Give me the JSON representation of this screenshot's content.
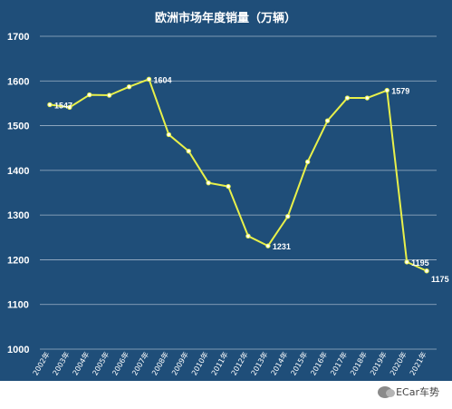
{
  "chart_data": {
    "type": "line",
    "title": "欧洲市场年度销量（万辆）",
    "xlabel": "",
    "ylabel": "",
    "categories": [
      "2002年",
      "2003年",
      "2004年",
      "2005年",
      "2006年",
      "2007年",
      "2008年",
      "2009年",
      "2010年",
      "2011年",
      "2012年",
      "2013年",
      "2014年",
      "2015年",
      "2016年",
      "2017年",
      "2018年",
      "2019年",
      "2020年",
      "2021年"
    ],
    "series": [
      {
        "values": [
          1547,
          1541,
          1569,
          1568,
          1587,
          1604,
          1480,
          1443,
          1372,
          1364,
          1253,
          1231,
          1297,
          1419,
          1511,
          1562,
          1562,
          1579,
          1195,
          1175
        ]
      }
    ],
    "data_labels": [
      {
        "index": 0,
        "text": "1547"
      },
      {
        "index": 5,
        "text": "1604"
      },
      {
        "index": 11,
        "text": "1231"
      },
      {
        "index": 17,
        "text": "1579"
      },
      {
        "index": 18,
        "text": "1195"
      },
      {
        "index": 19,
        "text": "1175"
      }
    ],
    "yticks": [
      "1000",
      "1100",
      "1200",
      "1300",
      "1400",
      "1500",
      "1600",
      "1700"
    ],
    "ylim": [
      1000,
      1700
    ],
    "grid": true,
    "legend": "none",
    "colors": {
      "background": "#1f4e79",
      "line": "#e8f04a",
      "grid": "#9fb3c8",
      "text": "#ffffff"
    }
  },
  "watermark": {
    "icon": "wechat-icon",
    "text": "ECar车势"
  }
}
